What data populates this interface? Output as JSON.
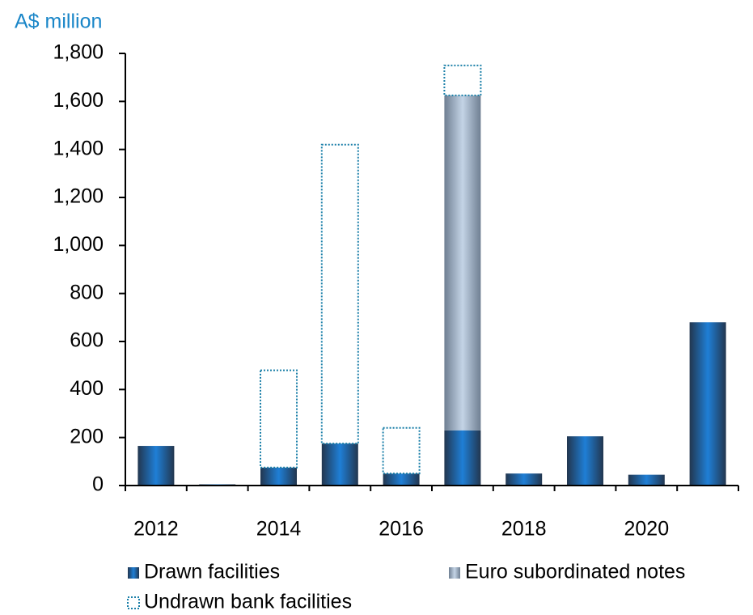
{
  "chart_data": {
    "type": "stacked_bar",
    "y_axis_label": "A$ million",
    "categories": [
      "2012",
      null,
      "2014",
      null,
      "2016",
      null,
      "2018",
      null,
      "2020",
      null
    ],
    "series": [
      {
        "name": "Drawn facilities",
        "color": "#1f7fd6",
        "values": [
          165,
          5,
          75,
          175,
          50,
          230,
          50,
          205,
          45,
          680
        ]
      },
      {
        "name": "Euro subordinated notes",
        "color": "#c4d4e6",
        "values": [
          0,
          0,
          0,
          0,
          0,
          1395,
          0,
          0,
          0,
          0
        ]
      },
      {
        "name": "Undrawn bank facilities",
        "color": "#1a7fa8",
        "values": [
          0,
          0,
          405,
          1245,
          190,
          125,
          0,
          0,
          0,
          0
        ]
      }
    ],
    "ylim": [
      0,
      1800
    ],
    "yticks": [
      0,
      200,
      400,
      600,
      800,
      {
        "value": 1000,
        "label": "1,000"
      },
      {
        "value": 1200,
        "label": "1,200"
      },
      {
        "value": 1400,
        "label": "1,400"
      },
      {
        "value": 1600,
        "label": "1,600"
      },
      {
        "value": 1800,
        "label": "1,800"
      }
    ]
  }
}
